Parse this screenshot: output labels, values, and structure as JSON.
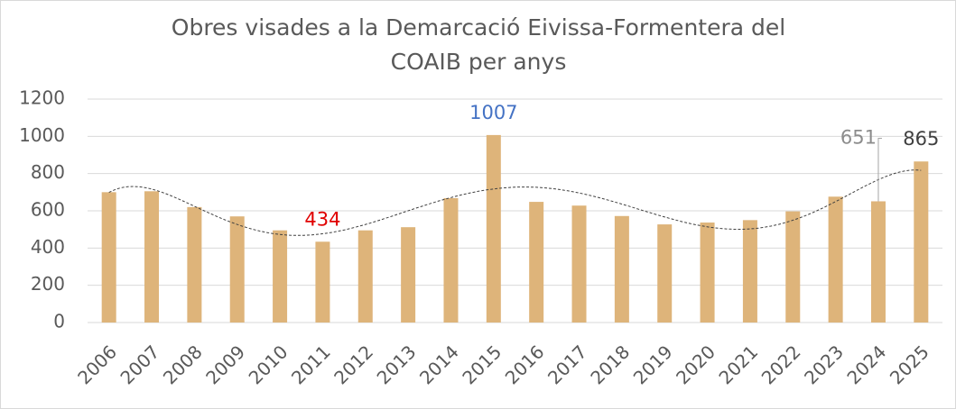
{
  "chart_data": {
    "type": "bar",
    "title": [
      "Obres visades a la Demarcació Eivissa-Formentera del",
      "COAIB per anys"
    ],
    "categories": [
      "2006",
      "2007",
      "2008",
      "2009",
      "2010",
      "2011",
      "2012",
      "2013",
      "2014",
      "2015",
      "2016",
      "2017",
      "2018",
      "2019",
      "2020",
      "2021",
      "2022",
      "2023",
      "2024",
      "2025"
    ],
    "values": [
      700,
      705,
      620,
      570,
      495,
      434,
      495,
      512,
      668,
      1007,
      648,
      628,
      572,
      527,
      537,
      550,
      597,
      676,
      651,
      865
    ],
    "value_label_colors": [
      null,
      null,
      null,
      null,
      null,
      "#e00000",
      null,
      null,
      null,
      "#4472c4",
      null,
      null,
      null,
      null,
      null,
      null,
      null,
      null,
      "#8c8c8c",
      "#404040"
    ],
    "color": "#deb47a",
    "ylim": [
      0,
      1200
    ],
    "yticks": [
      0,
      200,
      400,
      600,
      800,
      1000,
      1200
    ],
    "grid": true,
    "trendline": "polynomial",
    "trend_order": 6
  }
}
